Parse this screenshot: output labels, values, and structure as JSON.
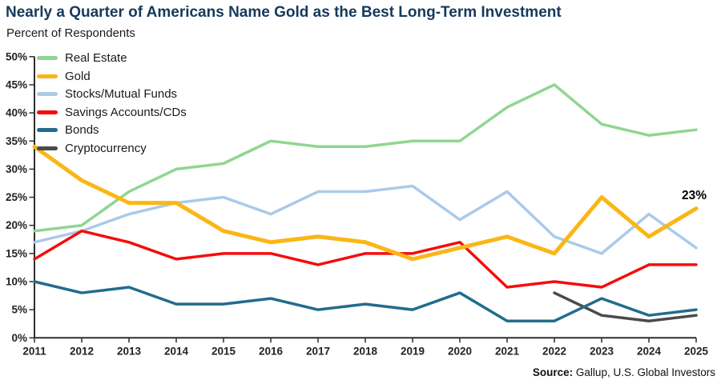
{
  "chart_data": {
    "type": "line",
    "title": "Nearly a Quarter of Americans Name Gold as the Best Long-Term Investment",
    "subtitle": "Percent of Respondents",
    "x": [
      2011,
      2012,
      2013,
      2014,
      2015,
      2016,
      2017,
      2018,
      2019,
      2020,
      2021,
      2022,
      2023,
      2024,
      2025
    ],
    "ylim": [
      0,
      50
    ],
    "ytick_step": 5,
    "ytick_suffix": "%",
    "grid": false,
    "legend_position": "top-left",
    "series": [
      {
        "name": "Real Estate",
        "color": "#90D690",
        "width": 3.5,
        "values": [
          19,
          20,
          26,
          30,
          31,
          35,
          34,
          34,
          35,
          35,
          41,
          45,
          38,
          36,
          37
        ]
      },
      {
        "name": "Gold",
        "color": "#FBB616",
        "width": 5,
        "values": [
          34,
          28,
          24,
          24,
          19,
          17,
          18,
          17,
          14,
          16,
          18,
          15,
          25,
          18,
          23
        ]
      },
      {
        "name": "Stocks/Mutual Funds",
        "color": "#ABCAEA",
        "width": 3.5,
        "values": [
          17,
          19,
          22,
          24,
          25,
          22,
          26,
          26,
          27,
          21,
          26,
          18,
          15,
          22,
          16
        ]
      },
      {
        "name": "Savings Accounts/CDs",
        "color": "#F60C0C",
        "width": 3.5,
        "values": [
          14,
          19,
          17,
          14,
          15,
          15,
          13,
          15,
          15,
          17,
          9,
          10,
          9,
          13,
          13
        ]
      },
      {
        "name": "Bonds",
        "color": "#226C8E",
        "width": 3.5,
        "values": [
          10,
          8,
          9,
          6,
          6,
          7,
          5,
          6,
          5,
          8,
          3,
          3,
          7,
          4,
          5
        ]
      },
      {
        "name": "Cryptocurrency",
        "color": "#4B4B4B",
        "width": 3.5,
        "values": [
          null,
          null,
          null,
          null,
          null,
          null,
          null,
          null,
          null,
          null,
          null,
          8,
          4,
          3,
          4
        ]
      }
    ],
    "annotation": {
      "text": "23%",
      "series": "Gold",
      "x": 2025,
      "y": 23
    },
    "axis_color": "#2E2E2E",
    "tick_label_color": "#232323"
  },
  "footer": {
    "source_label": "Source:",
    "source_text": " Gallup, U.S. Global Investors"
  }
}
